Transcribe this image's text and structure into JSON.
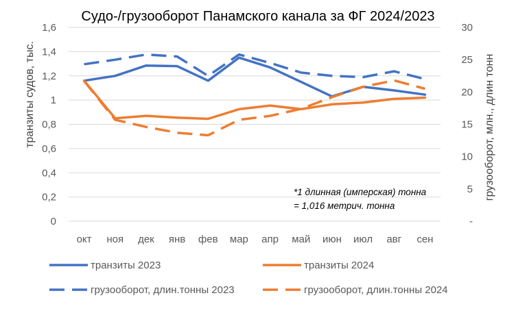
{
  "chart_data": {
    "type": "line",
    "title": "Судо-/грузооборот Панамского канала за ФГ 2024/2023",
    "categories": [
      "окт",
      "ноя",
      "дек",
      "янв",
      "фев",
      "мар",
      "апр",
      "май",
      "июн",
      "июл",
      "авг",
      "сен"
    ],
    "y_left": {
      "label": "транзиты судов, тыс.",
      "ylim": [
        0,
        1.6
      ],
      "ticks": [
        "0",
        "0,2",
        "0,4",
        "0,6",
        "0,8",
        "1",
        "1,2",
        "1,4",
        "1,6"
      ]
    },
    "y_right": {
      "label": "грузооборот, млн., длин тонн",
      "ylim": [
        0,
        30
      ],
      "ticks": [
        "-",
        "5",
        "10",
        "15",
        "20",
        "25",
        "30"
      ]
    },
    "grid": "horizontal",
    "legend_position": "bottom",
    "annotation": [
      "*1 длинная (имперская) тонна",
      "= 1,016 метрич. тонна"
    ],
    "series": [
      {
        "name": "транзиты 2023",
        "axis": "left",
        "style": "solid",
        "color": "#4472C4",
        "values": [
          1.16,
          1.2,
          1.285,
          1.28,
          1.16,
          1.35,
          1.27,
          1.15,
          1.03,
          1.11,
          1.08,
          1.045
        ]
      },
      {
        "name": "транзиты 2024",
        "axis": "left",
        "style": "solid",
        "color": "#ED7D31",
        "values": [
          1.16,
          0.85,
          0.87,
          0.855,
          0.845,
          0.925,
          0.955,
          0.925,
          0.965,
          0.98,
          1.01,
          1.02
        ]
      },
      {
        "name": "грузооборот, длин.тонны 2023",
        "axis": "right",
        "style": "dashed",
        "color": "#4472C4",
        "values": [
          24.3,
          25.0,
          25.8,
          25.5,
          22.5,
          25.8,
          24.5,
          23.0,
          22.5,
          22.3,
          23.2,
          22.0
        ]
      },
      {
        "name": "грузооборот, длин.тонны 2024",
        "axis": "right",
        "style": "dashed",
        "color": "#ED7D31",
        "values": [
          21.7,
          15.7,
          14.6,
          13.7,
          13.3,
          15.7,
          16.3,
          17.4,
          19.2,
          20.8,
          21.8,
          20.5
        ]
      }
    ]
  }
}
